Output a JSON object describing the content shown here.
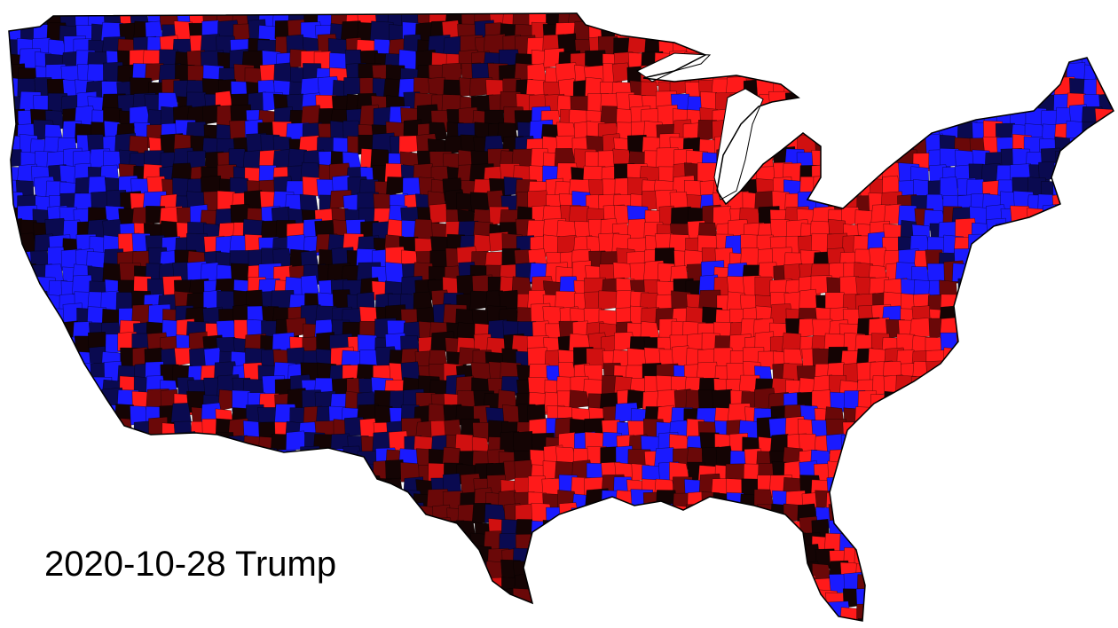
{
  "caption": "2020-10-28 Trump",
  "colors": {
    "background": "#ffffff",
    "strong_red": "#ff1a1a",
    "red": "#d01010",
    "dark_red": "#6a0808",
    "near_black": "#140404",
    "dark_blue": "#0a0a50",
    "blue": "#1a1aff",
    "outline": "#000000"
  },
  "regions": {
    "west_coast": "blue-dominant",
    "mountain_west": "dark mixed",
    "great_plains": "dark red",
    "midwest": "bright red",
    "appalachia": "bright red",
    "southeast": "mixed red and blue",
    "northeast": "blue-dominant"
  }
}
